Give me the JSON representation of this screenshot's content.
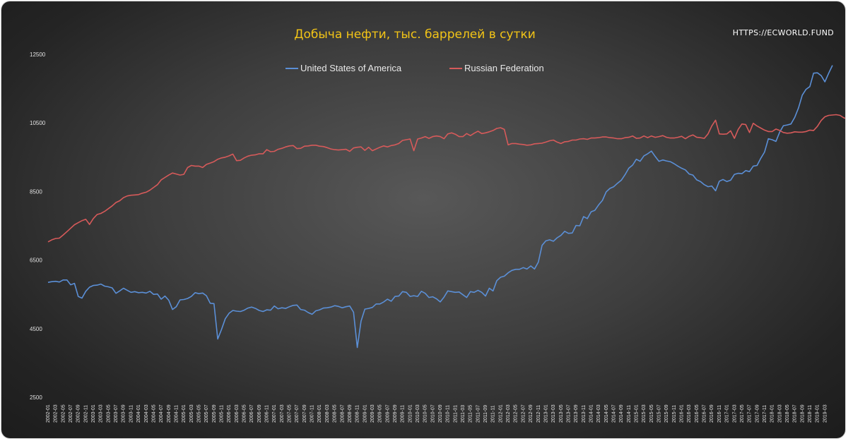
{
  "source_label": "HTTPS://ECWORLD.FUND",
  "chart_data": {
    "type": "line",
    "title": "Добыча нефти, тыс. баррелей в сутки",
    "xlabel": "",
    "ylabel": "",
    "ylim": [
      2500,
      12500
    ],
    "yticks": [
      2500,
      4500,
      6500,
      8500,
      10500,
      12500
    ],
    "grid": false,
    "legend_position": "top-center",
    "x_start": "2002-01",
    "x_tick_step_months": 2,
    "x_ticks": [
      "2002-01",
      "2002-03",
      "2002-05",
      "2002-07",
      "2002-09",
      "2002-11",
      "2003-01",
      "2003-03",
      "2003-05",
      "2003-07",
      "2003-09",
      "2003-11",
      "2004-01",
      "2004-03",
      "2004-05",
      "2004-07",
      "2004-09",
      "2004-11",
      "2005-01",
      "2005-03",
      "2005-05",
      "2005-07",
      "2005-09",
      "2005-11",
      "2006-01",
      "2006-03",
      "2006-05",
      "2006-07",
      "2006-09",
      "2006-11",
      "2007-01",
      "2007-03",
      "2007-05",
      "2007-07",
      "2007-09",
      "2007-11",
      "2008-01",
      "2008-03",
      "2008-05",
      "2008-07",
      "2008-09",
      "2008-11",
      "2009-01",
      "2009-03",
      "2009-05",
      "2009-07",
      "2009-09",
      "2009-11",
      "2010-01",
      "2010-03",
      "2010-05",
      "2010-07",
      "2010-09",
      "2010-11",
      "2011-01",
      "2011-03",
      "2011-05",
      "2011-07",
      "2011-09",
      "2011-11",
      "2012-01",
      "2012-03",
      "2012-05",
      "2012-07",
      "2012-09",
      "2012-11",
      "2013-01",
      "2013-03",
      "2013-05",
      "2013-07",
      "2013-09",
      "2013-11",
      "2014-01",
      "2014-03",
      "2014-05",
      "2014-07",
      "2014-09",
      "2014-11",
      "2015-01",
      "2015-03",
      "2015-05",
      "2015-07",
      "2015-09",
      "2015-11",
      "2016-01",
      "2016-03",
      "2016-05",
      "2016-07",
      "2016-09",
      "2016-11",
      "2017-01",
      "2017-03",
      "2017-05",
      "2017-07",
      "2017-09",
      "2017-11",
      "2018-01",
      "2018-03",
      "2018-05",
      "2018-07",
      "2018-09",
      "2018-11",
      "2019-01",
      "2019-03"
    ],
    "series": [
      {
        "name": "United States of America",
        "color": "#5b8fd6",
        "values": [
          5850,
          5870,
          5880,
          5860,
          5920,
          5920,
          5780,
          5820,
          5440,
          5390,
          5590,
          5710,
          5760,
          5770,
          5800,
          5740,
          5720,
          5690,
          5530,
          5600,
          5680,
          5620,
          5560,
          5580,
          5550,
          5560,
          5540,
          5590,
          5500,
          5510,
          5360,
          5450,
          5330,
          5060,
          5140,
          5340,
          5350,
          5380,
          5440,
          5550,
          5520,
          5540,
          5460,
          5240,
          5230,
          4200,
          4480,
          4790,
          4950,
          5030,
          5010,
          5000,
          5040,
          5100,
          5130,
          5090,
          5030,
          5000,
          5050,
          5040,
          5160,
          5080,
          5110,
          5090,
          5140,
          5180,
          5190,
          5060,
          5040,
          4970,
          4920,
          5020,
          5050,
          5100,
          5110,
          5130,
          5170,
          5150,
          5110,
          5140,
          5160,
          4980,
          3950,
          4720,
          5070,
          5090,
          5120,
          5220,
          5220,
          5280,
          5360,
          5300,
          5440,
          5450,
          5580,
          5560,
          5440,
          5460,
          5440,
          5590,
          5530,
          5410,
          5430,
          5370,
          5280,
          5420,
          5600,
          5580,
          5560,
          5570,
          5490,
          5410,
          5580,
          5560,
          5620,
          5560,
          5450,
          5680,
          5600,
          5900,
          6000,
          6030,
          6130,
          6200,
          6230,
          6230,
          6280,
          6240,
          6330,
          6240,
          6440,
          6930,
          7060,
          7090,
          7050,
          7150,
          7220,
          7340,
          7280,
          7290,
          7510,
          7500,
          7770,
          7710,
          7910,
          7950,
          8110,
          8240,
          8490,
          8590,
          8640,
          8740,
          8830,
          8990,
          9180,
          9270,
          9440,
          9380,
          9540,
          9600,
          9680,
          9520,
          9380,
          9420,
          9390,
          9370,
          9310,
          9240,
          9180,
          9130,
          9010,
          8980,
          8840,
          8790,
          8700,
          8640,
          8660,
          8520,
          8800,
          8850,
          8790,
          8830,
          9000,
          9030,
          9020,
          9110,
          9080,
          9240,
          9260,
          9470,
          9650,
          10040,
          10010,
          9960,
          10230,
          10420,
          10440,
          10470,
          10660,
          10940,
          11310,
          11480,
          11560,
          11950,
          11960,
          11880,
          11700,
          11950,
          12180
        ]
      },
      {
        "name": "Russian Federation",
        "color": "#d65a5a",
        "values": [
          7030,
          7090,
          7130,
          7140,
          7230,
          7330,
          7430,
          7530,
          7590,
          7650,
          7690,
          7540,
          7710,
          7830,
          7860,
          7920,
          8000,
          8080,
          8180,
          8230,
          8320,
          8370,
          8390,
          8400,
          8410,
          8450,
          8480,
          8540,
          8620,
          8700,
          8840,
          8910,
          8980,
          9040,
          9010,
          8980,
          9000,
          9200,
          9260,
          9240,
          9240,
          9200,
          9290,
          9330,
          9370,
          9440,
          9480,
          9500,
          9540,
          9590,
          9400,
          9410,
          9480,
          9530,
          9560,
          9570,
          9600,
          9600,
          9720,
          9660,
          9670,
          9730,
          9760,
          9800,
          9830,
          9840,
          9750,
          9760,
          9820,
          9830,
          9850,
          9850,
          9820,
          9810,
          9780,
          9740,
          9720,
          9710,
          9720,
          9730,
          9670,
          9770,
          9790,
          9800,
          9700,
          9790,
          9690,
          9740,
          9790,
          9830,
          9800,
          9840,
          9860,
          9900,
          9990,
          10010,
          10030,
          9690,
          10030,
          10060,
          10100,
          10050,
          10100,
          10120,
          10100,
          10040,
          10180,
          10210,
          10170,
          10100,
          10100,
          10190,
          10130,
          10200,
          10260,
          10190,
          10210,
          10240,
          10280,
          10340,
          10360,
          10310,
          9860,
          9900,
          9900,
          9880,
          9870,
          9850,
          9860,
          9890,
          9900,
          9910,
          9940,
          9980,
          10000,
          9940,
          9900,
          9950,
          9960,
          10000,
          10000,
          10030,
          10040,
          10020,
          10060,
          10060,
          10070,
          10090,
          10090,
          10070,
          10060,
          10040,
          10040,
          10070,
          10080,
          10120,
          10050,
          10060,
          10120,
          10070,
          10120,
          10080,
          10100,
          10130,
          10080,
          10060,
          10060,
          10080,
          10110,
          10040,
          10110,
          10150,
          10080,
          10070,
          10050,
          10180,
          10410,
          10580,
          10180,
          10170,
          10180,
          10270,
          10050,
          10310,
          10470,
          10450,
          10220,
          10490,
          10410,
          10350,
          10290,
          10250,
          10250,
          10320,
          10280,
          10220,
          10200,
          10210,
          10240,
          10230,
          10230,
          10250,
          10290,
          10280,
          10400,
          10570,
          10680,
          10720,
          10730,
          10740,
          10720,
          10650,
          10610,
          10580,
          10570
        ]
      }
    ]
  }
}
